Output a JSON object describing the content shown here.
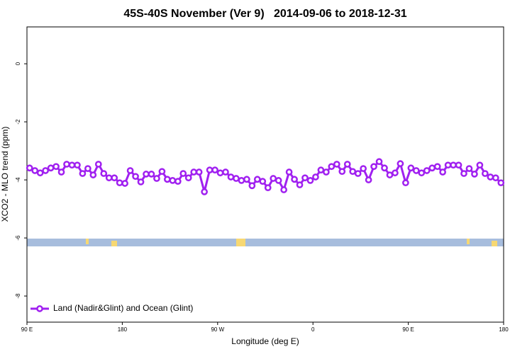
{
  "chart_data": {
    "type": "line",
    "title": "45S-40S November (Ver 9)   2014-09-06 to 2018-12-31",
    "x_label": "Longitude (deg E)",
    "y_label": "XCO2 - MLO trend (ppm)",
    "xlim": [
      90,
      540
    ],
    "ylim": [
      -8.9,
      1.27
    ],
    "xticks": [
      {
        "value": 90,
        "label": "90 E"
      },
      {
        "value": 180,
        "label": "180"
      },
      {
        "value": 270,
        "label": "90 W"
      },
      {
        "value": 360,
        "label": "0"
      },
      {
        "value": 450,
        "label": "90 E"
      },
      {
        "value": 540,
        "label": "180"
      }
    ],
    "yticks": [
      0,
      -2,
      -4,
      -6,
      -8
    ],
    "legend": "bottom-left",
    "x": [
      92.5,
      97.5,
      102.5,
      107.5,
      112.5,
      117.5,
      122.5,
      127.5,
      132.5,
      137.5,
      142.5,
      147.5,
      152.5,
      157.5,
      162.5,
      167.5,
      172.5,
      177.5,
      182.5,
      187.5,
      192.5,
      197.5,
      202.5,
      207.5,
      212.5,
      217.5,
      222.5,
      227.5,
      232.5,
      237.5,
      242.5,
      247.5,
      252.5,
      257.5,
      262.5,
      267.5,
      272.5,
      277.5,
      282.5,
      287.5,
      292.5,
      297.5,
      302.5,
      307.5,
      312.5,
      317.5,
      322.5,
      327.5,
      332.5,
      337.5,
      342.5,
      347.5,
      352.5,
      357.5,
      362.5,
      367.5,
      372.5,
      377.5,
      382.5,
      387.5,
      392.5,
      397.5,
      402.5,
      407.5,
      412.5,
      417.5,
      422.5,
      427.5,
      432.5,
      437.5,
      442.5,
      447.5,
      452.5,
      457.5,
      462.5,
      467.5,
      472.5,
      477.5,
      482.5,
      487.5,
      492.5,
      497.5,
      502.5,
      507.5,
      512.5,
      517.5,
      522.5,
      527.5,
      532.5,
      537.5
    ],
    "series": [
      {
        "name": "Land (Nadir&Glint) and Ocean (Glint)",
        "color": "#a020f0",
        "values": [
          -3.59,
          -3.68,
          -3.76,
          -3.68,
          -3.59,
          -3.54,
          -3.73,
          -3.46,
          -3.49,
          -3.49,
          -3.78,
          -3.61,
          -3.83,
          -3.46,
          -3.78,
          -3.93,
          -3.93,
          -4.1,
          -4.12,
          -3.68,
          -3.88,
          -4.07,
          -3.8,
          -3.8,
          -3.95,
          -3.71,
          -3.98,
          -4.02,
          -4.05,
          -3.78,
          -3.93,
          -3.73,
          -3.73,
          -4.41,
          -3.66,
          -3.66,
          -3.76,
          -3.73,
          -3.9,
          -3.95,
          -4.02,
          -3.98,
          -4.2,
          -3.98,
          -4.05,
          -4.27,
          -3.95,
          -4.02,
          -4.34,
          -3.73,
          -3.98,
          -4.17,
          -3.93,
          -4.02,
          -3.9,
          -3.66,
          -3.73,
          -3.54,
          -3.46,
          -3.71,
          -3.46,
          -3.71,
          -3.78,
          -3.61,
          -4.0,
          -3.54,
          -3.37,
          -3.59,
          -3.83,
          -3.76,
          -3.44,
          -4.1,
          -3.59,
          -3.68,
          -3.76,
          -3.68,
          -3.59,
          -3.54,
          -3.73,
          -3.49,
          -3.49,
          -3.49,
          -3.78,
          -3.61,
          -3.8,
          -3.49,
          -3.78,
          -3.9,
          -3.93,
          -4.1
        ]
      }
    ]
  }
}
